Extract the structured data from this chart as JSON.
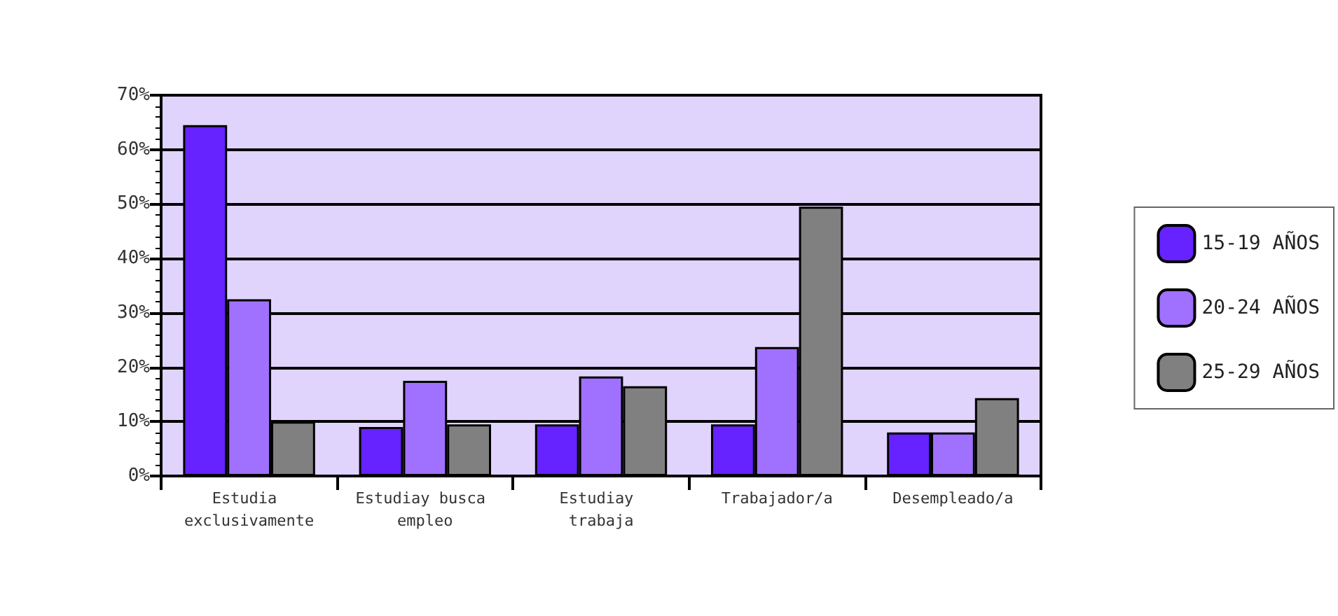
{
  "chart_data": {
    "type": "bar",
    "categories": [
      "Estudia exclusivamente",
      "Estudiay busca empleo",
      "Estudiay trabaja",
      "Trabajador/a",
      "Desempleado/a"
    ],
    "series": [
      {
        "name": "15-19 AÑOS",
        "color": "#6622ff",
        "values": [
          64.5,
          9,
          9.5,
          9.5,
          8
        ]
      },
      {
        "name": "20-24 AÑOS",
        "color": "#a070ff",
        "values": [
          32.5,
          17.5,
          18.3,
          23.7,
          8
        ]
      },
      {
        "name": "25-29 AÑOS",
        "color": "#808080",
        "values": [
          10,
          9.5,
          16.5,
          49.5,
          14.3
        ]
      }
    ],
    "ylim": [
      0,
      70
    ],
    "yticks": [
      {
        "value": 0,
        "label": "0%"
      },
      {
        "value": 10,
        "label": "10%"
      },
      {
        "value": 20,
        "label": "20%"
      },
      {
        "value": 30,
        "label": "30%"
      },
      {
        "value": 40,
        "label": "40%"
      },
      {
        "value": 50,
        "label": "50%"
      },
      {
        "value": 60,
        "label": "60%"
      },
      {
        "value": 70,
        "label": "70%"
      }
    ],
    "grid": "y",
    "legend": "right"
  }
}
